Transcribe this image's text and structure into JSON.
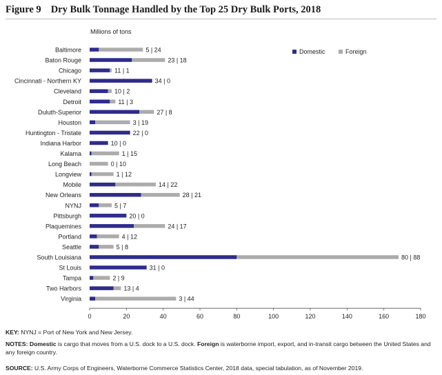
{
  "figure": {
    "number": "Figure 9",
    "title": "Dry Bulk Tonnage Handled by the Top 25 Dry Bulk Ports, 2018"
  },
  "chart_data": {
    "type": "bar",
    "orientation": "horizontal",
    "stacked": true,
    "unit_label": "Millions of tons",
    "xlim": [
      0,
      180
    ],
    "xticks": [
      0,
      20,
      40,
      60,
      80,
      100,
      120,
      140,
      160,
      180
    ],
    "legend_position": "top-right",
    "categories": [
      "Baltimore",
      "Baton Rouge",
      "Chicago",
      "Cincinnati - Northern KY",
      "Cleveland",
      "Detroit",
      "Duluth-Superior",
      "Houston",
      "Huntington - Tristate",
      "Indiana Harbor",
      "Kalama",
      "Long Beach",
      "Longview",
      "Mobile",
      "New Orleans",
      "NYNJ",
      "Pittsburgh",
      "Plaquemines",
      "Portland",
      "Seattle",
      "South Louisiana",
      "St Louis",
      "Tampa",
      "Two Harbors",
      "Virginia"
    ],
    "series": [
      {
        "name": "Domestic",
        "color": "#2e2c8c",
        "values": [
          5,
          23,
          11,
          34,
          10,
          11,
          27,
          3,
          22,
          10,
          1,
          0,
          1,
          14,
          28,
          5,
          20,
          24,
          4,
          5,
          80,
          31,
          2,
          13,
          3
        ]
      },
      {
        "name": "Foreign",
        "color": "#acacac",
        "values": [
          24,
          18,
          1,
          0,
          2,
          3,
          8,
          19,
          0,
          0,
          15,
          10,
          12,
          22,
          21,
          7,
          0,
          17,
          12,
          8,
          88,
          0,
          9,
          4,
          44
        ]
      }
    ],
    "data_labels": [
      "5 | 24",
      "23 | 18",
      "11 | 1",
      "34 | 0",
      "10 | 2",
      "11 | 3",
      "27 | 8",
      "3 | 19",
      "22 | 0",
      "10 | 0",
      "1 | 15",
      "0 | 10",
      "1 | 12",
      "14 | 22",
      "28 | 21",
      "5 | 7",
      "20 | 0",
      "24 | 17",
      "4 | 12",
      "5 | 8",
      "80 | 88",
      "31 | 0",
      "2 | 9",
      "13 | 4",
      "3 | 44"
    ]
  },
  "notes": {
    "key_label": "KEY:",
    "key_text": " NYNJ = Port of New York and New Jersey.",
    "notes_label": "NOTES:",
    "domestic_term": "Domestic",
    "domestic_def": " is cargo that moves from a U.S. dock to a U.S. dock. ",
    "foreign_term": "Foreign",
    "foreign_def": " is waterborne import, export, and in-transit cargo between the United States and any foreign country.",
    "source_label": "SOURCE:",
    "source_text": " U.S. Army Corps of Engineers, Waterborne Commerce Statistics Center, 2018 data, special tabulation, as of November 2019."
  }
}
